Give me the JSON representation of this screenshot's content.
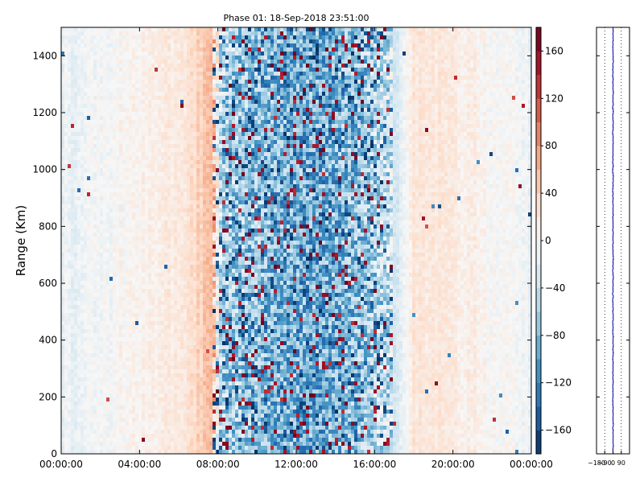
{
  "chart_data": [
    {
      "type": "heatmap",
      "title": "Phase 01: 18-Sep-2018 23:51:00",
      "ylabel": "Range (Km)",
      "xlabel": "",
      "x_ticks": [
        "00:00:00",
        "04:00:00",
        "08:00:00",
        "12:00:00",
        "16:00:00",
        "20:00:00",
        "00:00:00"
      ],
      "xlim_hours": [
        0,
        24
      ],
      "ylim": [
        0,
        1500
      ],
      "y_ticks": [
        0,
        200,
        400,
        600,
        800,
        1000,
        1200,
        1400
      ],
      "colorbar": {
        "colormap": "RdBu_r",
        "range": [
          -180,
          180
        ],
        "ticks": [
          -160,
          -120,
          -80,
          -40,
          0,
          40,
          80,
          120,
          160
        ],
        "colors": {
          "low": "#053061",
          "mid": "#f7f7f7",
          "high": "#67001f"
        }
      },
      "phase_profile_by_time": [
        {
          "hour": 0,
          "mean_phase": -15
        },
        {
          "hour": 2,
          "mean_phase": -3
        },
        {
          "hour": 4,
          "mean_phase": 8
        },
        {
          "hour": 6,
          "mean_phase": 20
        },
        {
          "hour": 7,
          "mean_phase": 38
        },
        {
          "hour": 7.7,
          "mean_phase": 60
        },
        {
          "hour": 8.2,
          "mean_phase": -60
        },
        {
          "hour": 9.2,
          "mean_phase": -65
        },
        {
          "hour": 11,
          "mean_phase": -85
        },
        {
          "hour": 13,
          "mean_phase": -90
        },
        {
          "hour": 15,
          "mean_phase": -75
        },
        {
          "hour": 17,
          "mean_phase": -40
        },
        {
          "hour": 18,
          "mean_phase": 25
        },
        {
          "hour": 20,
          "mean_phase": 18
        },
        {
          "hour": 22,
          "mean_phase": 3
        },
        {
          "hour": 24,
          "mean_phase": -10
        }
      ],
      "noisy_interval_hours": [
        7.7,
        17.0
      ]
    },
    {
      "type": "line",
      "title": "",
      "xlabel": "",
      "ylabel": "",
      "x_ticks": [
        "−180",
        "−90",
        "0",
        "90"
      ],
      "xlim": [
        -180,
        180
      ],
      "ylim": [
        0,
        1500
      ],
      "grid": "x-dotted",
      "series_color": "#0000aa",
      "mean_value": 0
    }
  ]
}
